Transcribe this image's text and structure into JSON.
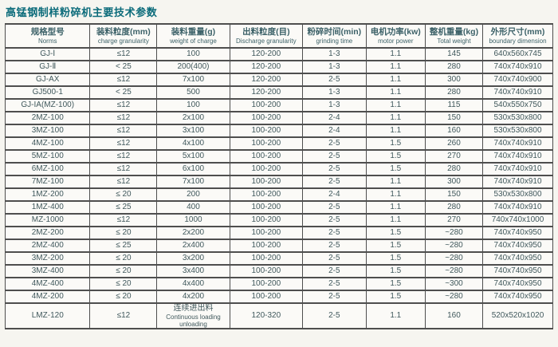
{
  "title": "高锰钢制样粉碎机主要技术参数",
  "colors": {
    "title_color": "#0b6b7a",
    "header_text_color": "#3c6168",
    "cell_text_color": "#40585c",
    "border_color": "#4e4e4e",
    "background": "#f6f5f0"
  },
  "table": {
    "columns": [
      {
        "zh": "规格型号",
        "en": "Norms"
      },
      {
        "zh": "装料粒度(mm)",
        "en": "charge granularity"
      },
      {
        "zh": "装料重量(g)",
        "en": "weight of charge"
      },
      {
        "zh": "出料粒度(目)",
        "en": "Discharge granularity"
      },
      {
        "zh": "粉碎时间(min)",
        "en": "grinding time"
      },
      {
        "zh": "电机功率(kw)",
        "en": "motor power"
      },
      {
        "zh": "整机重量(kg)",
        "en": "Total weight"
      },
      {
        "zh": "外形尺寸(mm)",
        "en": "boundary dimension"
      }
    ],
    "rows": [
      [
        "GJ-Ⅰ",
        "≤12",
        "100",
        "120-200",
        "1-3",
        "1.1",
        "145",
        "640x560x745"
      ],
      [
        "GJ-Ⅱ",
        "< 25",
        "200(400)",
        "120-200",
        "1-3",
        "1.1",
        "280",
        "740x740x910"
      ],
      [
        "GJ-AX",
        "≤12",
        "7x100",
        "120-200",
        "2-5",
        "1.1",
        "300",
        "740x740x900"
      ],
      [
        "GJ500-1",
        "< 25",
        "500",
        "120-200",
        "1-3",
        "1.1",
        "280",
        "740x740x910"
      ],
      [
        "GJ-IA(MZ-100)",
        "≤12",
        "100",
        "100-200",
        "1-3",
        "1.1",
        "115",
        "540x550x750"
      ],
      [
        "2MZ-100",
        "≤12",
        "2x100",
        "100-200",
        "2-4",
        "1.1",
        "150",
        "530x530x800"
      ],
      [
        "3MZ-100",
        "≤12",
        "3x100",
        "100-200",
        "2-4",
        "1.1",
        "160",
        "530x530x800"
      ],
      [
        "4MZ-100",
        "≤12",
        "4x100",
        "100-200",
        "2-5",
        "1.5",
        "260",
        "740x740x910"
      ],
      [
        "5MZ-100",
        "≤12",
        "5x100",
        "100-200",
        "2-5",
        "1.5",
        "270",
        "740x740x910"
      ],
      [
        "6MZ-100",
        "≤12",
        "6x100",
        "100-200",
        "2-5",
        "1.5",
        "280",
        "740x740x910"
      ],
      [
        "7MZ-100",
        "≤12",
        "7x100",
        "100-200",
        "2-5",
        "1.1",
        "300",
        "740x740x910"
      ],
      [
        "1MZ-200",
        "≤ 20",
        "200",
        "100-200",
        "2-4",
        "1.1",
        "150",
        "530x530x800"
      ],
      [
        "1MZ-400",
        "≤ 25",
        "400",
        "100-200",
        "2-5",
        "1.1",
        "280",
        "740x740x910"
      ],
      [
        "MZ-1000",
        "≤12",
        "1000",
        "100-200",
        "2-5",
        "1.1",
        "270",
        "740x740x1000"
      ],
      [
        "2MZ-200",
        "≤ 20",
        "2x200",
        "100-200",
        "2-5",
        "1.5",
        "~280",
        "740x740x950"
      ],
      [
        "2MZ-400",
        "≤ 25",
        "2x400",
        "100-200",
        "2-5",
        "1.5",
        "~280",
        "740x740x950"
      ],
      [
        "3MZ-200",
        "≤ 20",
        "3x200",
        "100-200",
        "2-5",
        "1.5",
        "~280",
        "740x740x950"
      ],
      [
        "3MZ-400",
        "≤ 20",
        "3x400",
        "100-200",
        "2-5",
        "1.5",
        "~280",
        "740x740x950"
      ],
      [
        "4MZ-400",
        "≤ 20",
        "4x400",
        "100-200",
        "2-5",
        "1.5",
        "~300",
        "740x740x950"
      ],
      [
        "4MZ-200",
        "≤ 20",
        "4x200",
        "100-200",
        "2-5",
        "1.5",
        "~280",
        "740x740x950"
      ],
      [
        "LMZ-120",
        "≤12",
        "连续进出料\nContinuous loading\nunloading",
        "120-320",
        "2-5",
        "1.1",
        "160",
        "520x520x1020"
      ]
    ]
  }
}
